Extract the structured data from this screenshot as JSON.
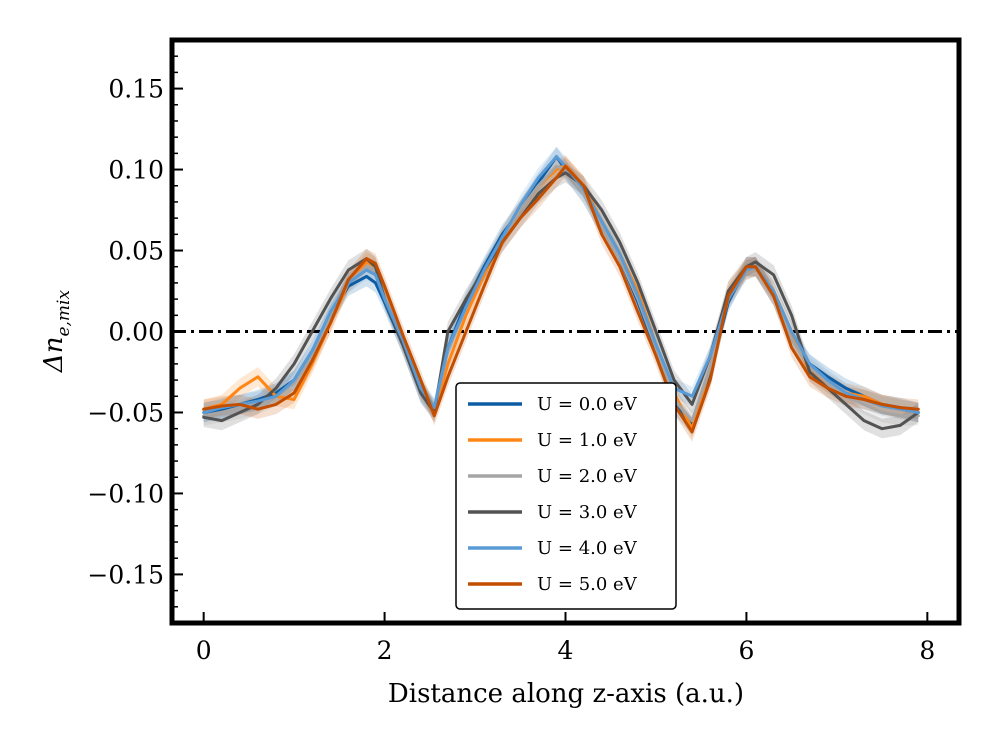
{
  "chart_data": {
    "type": "line",
    "title": "",
    "xlabel": "Distance along z-axis (a.u.)",
    "ylabel_main": "Δn",
    "ylabel_sub": "e,mix",
    "xlim": [
      -0.35,
      8.35
    ],
    "ylim": [
      -0.18,
      0.18
    ],
    "xticks": [
      0,
      2,
      4,
      6,
      8
    ],
    "xtick_labels": [
      "0",
      "2",
      "4",
      "6",
      "8"
    ],
    "yticks": [
      -0.15,
      -0.1,
      -0.05,
      0.0,
      0.05,
      0.1,
      0.15
    ],
    "ytick_labels": [
      "−0.15",
      "−0.10",
      "−0.05",
      "0.00",
      "0.05",
      "0.10",
      "0.15"
    ],
    "reference_line": {
      "y": 0.0,
      "style": "dash-dot",
      "color": "#000000"
    },
    "legend_position": "bottom-center",
    "x": [
      0.0,
      0.2,
      0.4,
      0.6,
      0.8,
      1.0,
      1.2,
      1.4,
      1.6,
      1.8,
      1.9,
      2.0,
      2.2,
      2.4,
      2.55,
      2.7,
      2.9,
      3.1,
      3.3,
      3.5,
      3.7,
      3.9,
      4.0,
      4.2,
      4.4,
      4.6,
      4.8,
      5.0,
      5.2,
      5.4,
      5.6,
      5.8,
      6.0,
      6.1,
      6.3,
      6.5,
      6.7,
      6.9,
      7.1,
      7.3,
      7.5,
      7.7,
      7.9
    ],
    "series": [
      {
        "name": "U = 0.0 eV",
        "color": "#0c5da5",
        "values": [
          -0.05,
          -0.048,
          -0.045,
          -0.042,
          -0.038,
          -0.03,
          -0.012,
          0.01,
          0.028,
          0.034,
          0.03,
          0.018,
          -0.008,
          -0.038,
          -0.048,
          -0.01,
          0.018,
          0.04,
          0.06,
          0.075,
          0.092,
          0.108,
          0.1,
          0.085,
          0.065,
          0.045,
          0.018,
          -0.012,
          -0.045,
          -0.058,
          -0.025,
          0.018,
          0.04,
          0.04,
          0.022,
          -0.005,
          -0.02,
          -0.028,
          -0.035,
          -0.04,
          -0.045,
          -0.047,
          -0.05
        ]
      },
      {
        "name": "U = 1.0 eV",
        "color": "#ff8515",
        "values": [
          -0.048,
          -0.045,
          -0.035,
          -0.028,
          -0.04,
          -0.042,
          -0.02,
          0.005,
          0.03,
          0.043,
          0.04,
          0.025,
          -0.005,
          -0.035,
          -0.05,
          -0.02,
          0.01,
          0.035,
          0.058,
          0.075,
          0.09,
          0.1,
          0.103,
          0.09,
          0.068,
          0.048,
          0.025,
          -0.008,
          -0.038,
          -0.06,
          -0.022,
          0.025,
          0.038,
          0.04,
          0.025,
          0.0,
          -0.025,
          -0.032,
          -0.038,
          -0.04,
          -0.045,
          -0.048,
          -0.05
        ]
      },
      {
        "name": "U = 2.0 eV",
        "color": "#a5a5a5",
        "values": [
          -0.052,
          -0.05,
          -0.048,
          -0.045,
          -0.04,
          -0.032,
          -0.015,
          0.01,
          0.03,
          0.04,
          0.038,
          0.022,
          -0.006,
          -0.036,
          -0.048,
          -0.012,
          0.015,
          0.038,
          0.058,
          0.075,
          0.09,
          0.102,
          0.1,
          0.085,
          0.065,
          0.045,
          0.02,
          -0.01,
          -0.042,
          -0.055,
          -0.022,
          0.02,
          0.038,
          0.04,
          0.022,
          -0.005,
          -0.022,
          -0.032,
          -0.04,
          -0.045,
          -0.05,
          -0.052,
          -0.052
        ]
      },
      {
        "name": "U = 3.0 eV",
        "color": "#535353",
        "values": [
          -0.053,
          -0.055,
          -0.05,
          -0.045,
          -0.035,
          -0.02,
          0.0,
          0.02,
          0.038,
          0.045,
          0.04,
          0.02,
          -0.008,
          -0.038,
          -0.05,
          0.0,
          0.02,
          0.038,
          0.055,
          0.07,
          0.085,
          0.095,
          0.098,
          0.09,
          0.075,
          0.055,
          0.03,
          0.0,
          -0.03,
          -0.045,
          -0.015,
          0.025,
          0.04,
          0.043,
          0.035,
          0.01,
          -0.025,
          -0.035,
          -0.045,
          -0.055,
          -0.06,
          -0.058,
          -0.05
        ]
      },
      {
        "name": "U = 4.0 eV",
        "color": "#5b9bd5",
        "values": [
          -0.05,
          -0.047,
          -0.045,
          -0.043,
          -0.04,
          -0.03,
          -0.012,
          0.012,
          0.03,
          0.038,
          0.035,
          0.02,
          -0.005,
          -0.035,
          -0.047,
          -0.01,
          0.015,
          0.038,
          0.058,
          0.078,
          0.095,
          0.108,
          0.102,
          0.088,
          0.068,
          0.048,
          0.022,
          -0.008,
          -0.035,
          -0.04,
          -0.015,
          0.02,
          0.038,
          0.04,
          0.025,
          0.0,
          -0.02,
          -0.03,
          -0.038,
          -0.042,
          -0.046,
          -0.048,
          -0.05
        ]
      },
      {
        "name": "U = 5.0 eV",
        "color": "#c44e00",
        "values": [
          -0.048,
          -0.046,
          -0.045,
          -0.048,
          -0.045,
          -0.038,
          -0.018,
          0.005,
          0.032,
          0.045,
          0.042,
          0.028,
          -0.002,
          -0.03,
          -0.052,
          -0.028,
          0.0,
          0.028,
          0.055,
          0.07,
          0.082,
          0.095,
          0.102,
          0.09,
          0.06,
          0.04,
          0.012,
          -0.015,
          -0.045,
          -0.062,
          -0.03,
          0.022,
          0.04,
          0.04,
          0.022,
          -0.01,
          -0.028,
          -0.035,
          -0.04,
          -0.042,
          -0.045,
          -0.047,
          -0.048
        ]
      }
    ]
  }
}
